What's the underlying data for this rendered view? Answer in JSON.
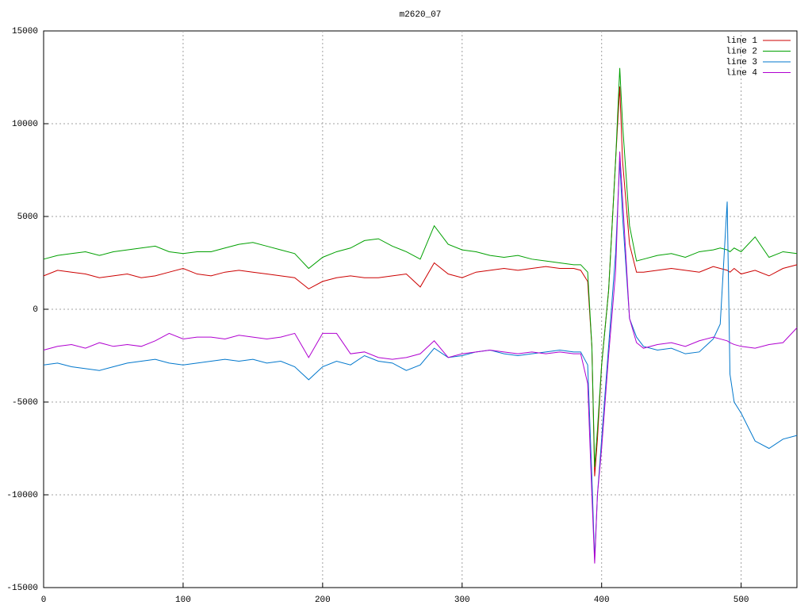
{
  "chart_data": {
    "type": "line",
    "title": "m2620_07",
    "x": [
      0,
      10,
      20,
      30,
      40,
      50,
      60,
      70,
      80,
      90,
      100,
      110,
      120,
      130,
      140,
      150,
      160,
      170,
      180,
      190,
      200,
      210,
      220,
      230,
      240,
      250,
      260,
      270,
      280,
      290,
      300,
      310,
      320,
      330,
      340,
      350,
      360,
      370,
      380,
      385,
      390,
      393,
      395,
      397,
      400,
      405,
      410,
      413,
      415,
      420,
      425,
      430,
      440,
      450,
      460,
      470,
      480,
      485,
      490,
      492,
      495,
      500,
      510,
      520,
      530,
      540
    ],
    "series": [
      {
        "name": "line 1",
        "color": "#cc0000",
        "values": [
          1800,
          2100,
          2000,
          1900,
          1700,
          1800,
          1900,
          1700,
          1800,
          2000,
          2200,
          1900,
          1800,
          2000,
          2100,
          2000,
          1900,
          1800,
          1700,
          1100,
          1500,
          1700,
          1800,
          1700,
          1700,
          1800,
          1900,
          1200,
          2500,
          1900,
          1700,
          2000,
          2100,
          2200,
          2100,
          2200,
          2300,
          2200,
          2200,
          2100,
          1500,
          -2000,
          -9000,
          -7000,
          -3000,
          1000,
          8000,
          12000,
          8000,
          3500,
          2000,
          2000,
          2100,
          2200,
          2100,
          2000,
          2300,
          2200,
          2100,
          2000,
          2200,
          1900,
          2100,
          1800,
          2200,
          2400
        ]
      },
      {
        "name": "line 2",
        "color": "#00a000",
        "values": [
          2700,
          2900,
          3000,
          3100,
          2900,
          3100,
          3200,
          3300,
          3400,
          3100,
          3000,
          3100,
          3100,
          3300,
          3500,
          3600,
          3400,
          3200,
          3000,
          2200,
          2800,
          3100,
          3300,
          3700,
          3800,
          3400,
          3100,
          2700,
          4500,
          3500,
          3200,
          3100,
          2900,
          2800,
          2900,
          2700,
          2600,
          2500,
          2400,
          2400,
          2000,
          -2000,
          -8500,
          -6500,
          -3000,
          1000,
          8000,
          13000,
          10000,
          4500,
          2600,
          2700,
          2900,
          3000,
          2800,
          3100,
          3200,
          3300,
          3200,
          3100,
          3300,
          3100,
          3900,
          2800,
          3100,
          3000
        ]
      },
      {
        "name": "line 3",
        "color": "#0077cc",
        "values": [
          -3000,
          -2900,
          -3100,
          -3200,
          -3300,
          -3100,
          -2900,
          -2800,
          -2700,
          -2900,
          -3000,
          -2900,
          -2800,
          -2700,
          -2800,
          -2700,
          -2900,
          -2800,
          -3100,
          -3800,
          -3100,
          -2800,
          -3000,
          -2500,
          -2800,
          -2900,
          -3300,
          -3000,
          -2100,
          -2600,
          -2500,
          -2300,
          -2200,
          -2400,
          -2500,
          -2400,
          -2300,
          -2200,
          -2300,
          -2300,
          -3000,
          -9000,
          -13500,
          -10000,
          -7000,
          -2000,
          3000,
          8000,
          5000,
          -500,
          -1500,
          -2000,
          -2200,
          -2100,
          -2400,
          -2300,
          -1600,
          -800,
          5800,
          -3500,
          -5000,
          -5600,
          -7100,
          -7500,
          -7000,
          -6800
        ]
      },
      {
        "name": "line 4",
        "color": "#b000d0",
        "values": [
          -2200,
          -2000,
          -1900,
          -2100,
          -1800,
          -2000,
          -1900,
          -2000,
          -1700,
          -1300,
          -1600,
          -1500,
          -1500,
          -1600,
          -1400,
          -1500,
          -1600,
          -1500,
          -1300,
          -2600,
          -1300,
          -1300,
          -2400,
          -2300,
          -2600,
          -2700,
          -2600,
          -2400,
          -1700,
          -2600,
          -2400,
          -2300,
          -2200,
          -2300,
          -2400,
          -2300,
          -2400,
          -2300,
          -2400,
          -2400,
          -4000,
          -10000,
          -13700,
          -10000,
          -7500,
          -2500,
          2000,
          8500,
          6000,
          -500,
          -1800,
          -2100,
          -1900,
          -1800,
          -2000,
          -1700,
          -1500,
          -1600,
          -1700,
          -1800,
          -1900,
          -2000,
          -2100,
          -1900,
          -1800,
          -1000
        ]
      }
    ],
    "xlim": [
      0,
      540
    ],
    "xticks": [
      0,
      100,
      200,
      300,
      400,
      500
    ],
    "ylim": [
      -15000,
      15000
    ],
    "yticks": [
      -15000,
      -10000,
      -5000,
      0,
      5000,
      10000,
      15000
    ],
    "grid": true,
    "legend": "top-right"
  }
}
